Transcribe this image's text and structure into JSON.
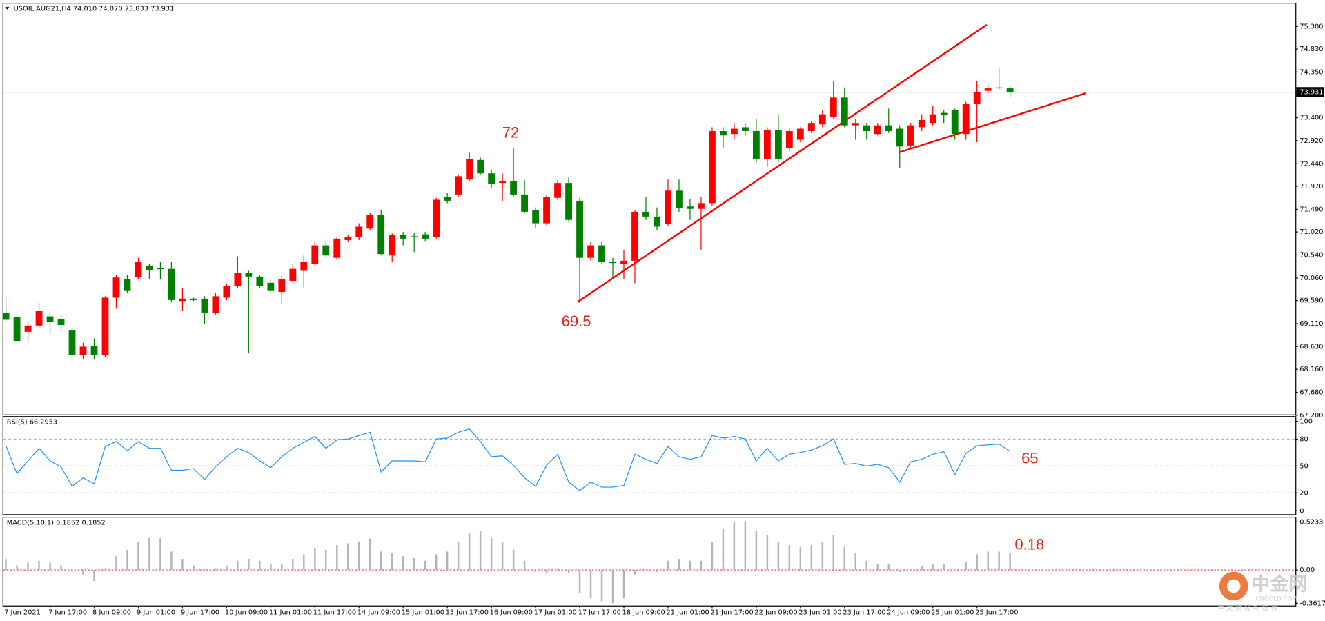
{
  "chart_data": [
    {
      "type": "candlestick",
      "title": "USOIL.AUG21,H4  74.010 74.070 73.833 73.931",
      "up_color": "#ff0000",
      "down_color": "#008000",
      "categories": [
        "7 Jun 2021",
        null,
        null,
        null,
        "7 Jun 17:00",
        null,
        null,
        null,
        "8 Jun 09:00",
        null,
        null,
        null,
        "9 Jun 01:00",
        null,
        null,
        null,
        "9 Jun 17:00",
        null,
        null,
        null,
        "10 Jun 09:00",
        null,
        null,
        null,
        "11 Jun 01:00",
        null,
        null,
        null,
        "11 Jun 17:00",
        null,
        null,
        null,
        "14 Jun 09:00",
        null,
        null,
        null,
        "15 Jun 01:00",
        null,
        null,
        null,
        "15 Jun 17:00",
        null,
        null,
        null,
        "16 Jun 09:00",
        null,
        null,
        null,
        "17 Jun 01:00",
        null,
        null,
        null,
        "17 Jun 17:00",
        null,
        null,
        null,
        "18 Jun 09:00",
        null,
        null,
        null,
        "21 Jun 01:00",
        null,
        null,
        null,
        "21 Jun 17:00",
        null,
        null,
        null,
        "22 Jun 09:00",
        null,
        null,
        null,
        "23 Jun 01:00",
        null,
        null,
        null,
        "23 Jun 17:00",
        null,
        null,
        null,
        "24 Jun 09:00",
        null,
        null,
        null,
        "25 Jun 01:00",
        null,
        null,
        null,
        "25 Jun 17:00",
        null,
        null,
        null
      ],
      "open": [
        69.33,
        69.24,
        68.94,
        69.07,
        69.26,
        69.21,
        68.98,
        68.45,
        68.64,
        68.45,
        69.65,
        70.04,
        70.07,
        70.32,
        70.26,
        70.25,
        69.58,
        69.63,
        69.63,
        69.33,
        69.65,
        69.89,
        70.16,
        70.09,
        69.96,
        69.77,
        70.0,
        70.21,
        70.35,
        70.74,
        70.48,
        70.85,
        70.92,
        71.09,
        71.37,
        70.53,
        70.95,
        70.93,
        70.97,
        70.92,
        71.74,
        71.8,
        72.11,
        72.52,
        72.24,
        72.04,
        72.08,
        71.8,
        71.48,
        71.2,
        71.73,
        72.04,
        71.67,
        70.48,
        70.74,
        70.39,
        70.35,
        70.42,
        71.44,
        71.34,
        71.18,
        71.88,
        71.55,
        71.5,
        71.62,
        73.12,
        73.06,
        73.2,
        73.12,
        72.54,
        73.15,
        72.77,
        72.94,
        73.12,
        73.26,
        73.42,
        73.82,
        73.24,
        73.24,
        73.06,
        73.24,
        73.17,
        72.82,
        73.2,
        73.29,
        73.5,
        73.56,
        73.06,
        73.68,
        73.96,
        74.01,
        74.01
      ],
      "high": [
        69.68,
        69.28,
        69.15,
        69.54,
        69.33,
        69.3,
        69.01,
        68.71,
        68.8,
        69.68,
        70.12,
        70.12,
        70.48,
        70.35,
        70.39,
        70.39,
        69.86,
        69.65,
        69.68,
        69.75,
        69.95,
        70.51,
        70.21,
        70.12,
        70.04,
        70.12,
        70.35,
        70.53,
        70.83,
        70.83,
        70.92,
        70.95,
        71.2,
        71.41,
        71.48,
        70.99,
        71.02,
        71.0,
        71.02,
        71.73,
        71.83,
        72.22,
        72.68,
        72.57,
        72.32,
        72.24,
        72.77,
        72.1,
        71.53,
        71.8,
        72.1,
        72.15,
        71.73,
        70.81,
        70.81,
        70.48,
        70.65,
        71.48,
        71.74,
        71.53,
        72.11,
        72.11,
        71.71,
        71.74,
        73.2,
        73.2,
        73.29,
        73.29,
        73.38,
        73.2,
        73.47,
        73.17,
        73.2,
        73.33,
        73.56,
        74.17,
        74.03,
        73.38,
        73.29,
        73.29,
        73.59,
        73.24,
        73.29,
        73.47,
        73.65,
        73.56,
        73.59,
        73.73,
        74.17,
        74.09,
        74.44,
        74.07
      ],
      "low": [
        69.15,
        68.71,
        68.71,
        69.03,
        68.89,
        68.98,
        68.41,
        68.36,
        68.36,
        68.41,
        69.42,
        69.75,
        70.04,
        70.04,
        70.04,
        69.56,
        69.38,
        69.58,
        69.1,
        69.3,
        69.6,
        69.86,
        68.49,
        69.86,
        69.75,
        69.51,
        69.96,
        69.86,
        70.3,
        70.49,
        70.44,
        70.81,
        70.85,
        71.06,
        70.53,
        70.39,
        70.74,
        70.6,
        70.83,
        70.88,
        71.62,
        71.74,
        72.08,
        72.2,
        71.94,
        71.66,
        71.76,
        71.41,
        71.09,
        71.16,
        71.69,
        71.23,
        69.54,
        70.42,
        70.35,
        70.04,
        70.04,
        69.95,
        71.27,
        71.06,
        71.14,
        71.44,
        71.27,
        70.65,
        71.57,
        72.77,
        72.94,
        73.03,
        72.47,
        72.38,
        72.47,
        72.71,
        72.89,
        73.08,
        73.2,
        73.38,
        73.2,
        72.94,
        72.94,
        73.03,
        73.08,
        72.36,
        72.77,
        73.12,
        73.24,
        73.29,
        72.94,
        72.94,
        72.89,
        73.91,
        73.99,
        73.833
      ],
      "close": [
        69.19,
        68.75,
        69.07,
        69.38,
        69.15,
        69.08,
        68.45,
        68.63,
        68.45,
        69.65,
        70.07,
        69.79,
        70.39,
        70.23,
        70.25,
        69.6,
        69.63,
        69.6,
        69.33,
        69.68,
        69.89,
        70.16,
        70.09,
        69.89,
        69.79,
        70.04,
        70.25,
        70.39,
        70.74,
        70.53,
        70.88,
        70.92,
        71.13,
        71.37,
        70.56,
        70.95,
        70.88,
        70.92,
        70.88,
        71.69,
        71.67,
        72.18,
        72.54,
        72.24,
        72.02,
        72.08,
        71.8,
        71.44,
        71.2,
        71.74,
        72.04,
        71.27,
        70.48,
        70.74,
        70.39,
        70.38,
        70.42,
        71.44,
        71.34,
        71.13,
        71.88,
        71.51,
        71.5,
        71.62,
        73.12,
        73.03,
        73.17,
        73.12,
        72.54,
        73.15,
        72.54,
        73.12,
        73.17,
        73.29,
        73.47,
        73.82,
        73.24,
        73.29,
        73.12,
        73.24,
        73.12,
        72.8,
        73.24,
        73.35,
        73.47,
        73.45,
        73.06,
        73.68,
        73.94,
        74.01,
        74.03,
        73.931
      ],
      "current_price": 73.931,
      "ylim": [
        67.217,
        75.776
      ],
      "yticks": [
        {
          "value": 75.3,
          "label": "75.300"
        },
        {
          "value": 74.83,
          "label": "74.830"
        },
        {
          "value": 74.35,
          "label": "74.350"
        },
        {
          "value": 73.4,
          "label": "73.400"
        },
        {
          "value": 72.92,
          "label": "72.920"
        },
        {
          "value": 72.44,
          "label": "72.440"
        },
        {
          "value": 71.97,
          "label": "71.970"
        },
        {
          "value": 71.49,
          "label": "71.490"
        },
        {
          "value": 71.02,
          "label": "71.020"
        },
        {
          "value": 70.54,
          "label": "70.540"
        },
        {
          "value": 70.06,
          "label": "70.060"
        },
        {
          "value": 69.59,
          "label": "69.590"
        },
        {
          "value": 69.11,
          "label": "69.110"
        },
        {
          "value": 68.63,
          "label": "68.630"
        },
        {
          "value": 68.16,
          "label": "68.160"
        },
        {
          "value": 67.68,
          "label": "67.680"
        },
        {
          "value": 67.2,
          "label": "67.200"
        }
      ],
      "annotations": [
        "72",
        "69.5"
      ]
    },
    {
      "type": "line",
      "title": "RSI(5) 66.2953",
      "color": "#1e90ff",
      "values": [
        72.6,
        41.5,
        55.7,
        69.8,
        55.7,
        49.1,
        27.4,
        36.8,
        30.2,
        71.7,
        77.4,
        67.0,
        77.4,
        69.8,
        69.8,
        45.3,
        45.3,
        47.2,
        34.9,
        49.1,
        60.4,
        69.8,
        65.1,
        55.7,
        48.1,
        60.4,
        69.8,
        76.4,
        83.0,
        69.8,
        79.2,
        80.2,
        84.0,
        87.7,
        43.4,
        55.7,
        55.7,
        55.7,
        54.7,
        80.2,
        81.1,
        87.7,
        91.5,
        77.4,
        60.4,
        61.3,
        50.9,
        36.8,
        27.4,
        50.9,
        63.2,
        32.1,
        22.6,
        32.1,
        26.4,
        26.4,
        28.3,
        63.2,
        57.5,
        52.8,
        71.7,
        60.4,
        57.5,
        60.4,
        84.0,
        81.1,
        83.0,
        80.2,
        55.7,
        69.8,
        55.7,
        63.2,
        65.1,
        67.9,
        72.6,
        80.2,
        51.9,
        52.8,
        50.0,
        51.9,
        48.1,
        32.1,
        54.7,
        57.5,
        63.2,
        66.0,
        40.6,
        64.2,
        72.6,
        73.6,
        74.5,
        66.3
      ],
      "ylim": [
        -3.8,
        104.7
      ],
      "yticks": [
        100,
        80,
        50,
        20,
        0
      ],
      "annotations": [
        "65"
      ]
    },
    {
      "type": "bar",
      "title": "MACD(5,10,1) 0.1852 0.1852",
      "color": "#b4b4b4",
      "values": [
        0.12,
        0.05,
        0.08,
        0.1,
        0.08,
        0.05,
        -0.02,
        -0.05,
        -0.12,
        0.02,
        0.15,
        0.22,
        0.3,
        0.35,
        0.35,
        0.2,
        0.12,
        0.05,
        0.01,
        0.02,
        0.05,
        0.1,
        0.12,
        0.1,
        0.06,
        0.07,
        0.12,
        0.17,
        0.24,
        0.22,
        0.27,
        0.29,
        0.31,
        0.34,
        0.2,
        0.18,
        0.15,
        0.13,
        0.1,
        0.17,
        0.2,
        0.3,
        0.4,
        0.42,
        0.35,
        0.3,
        0.22,
        0.1,
        -0.02,
        -0.04,
        0.02,
        -0.03,
        -0.25,
        -0.3,
        -0.34,
        -0.36,
        -0.3,
        -0.05,
        0.0,
        -0.02,
        0.1,
        0.12,
        0.1,
        0.1,
        0.3,
        0.45,
        0.52,
        0.53,
        0.42,
        0.38,
        0.3,
        0.27,
        0.25,
        0.27,
        0.3,
        0.38,
        0.25,
        0.18,
        0.1,
        0.06,
        0.06,
        -0.02,
        0.0,
        0.04,
        0.06,
        0.07,
        0.0,
        0.09,
        0.17,
        0.2,
        0.2,
        0.1852
      ],
      "ylim": [
        -0.386,
        0.569
      ],
      "yticks": [
        0.5233,
        {
          "value": 0,
          "label": "0.00"
        },
        -0.3617
      ],
      "annotations": [
        "0.18"
      ]
    }
  ],
  "watermark": {
    "logo": "中金网",
    "site": "CNGOLD.COM",
    "slogan": "中 文 财 经 新 媒 体"
  }
}
